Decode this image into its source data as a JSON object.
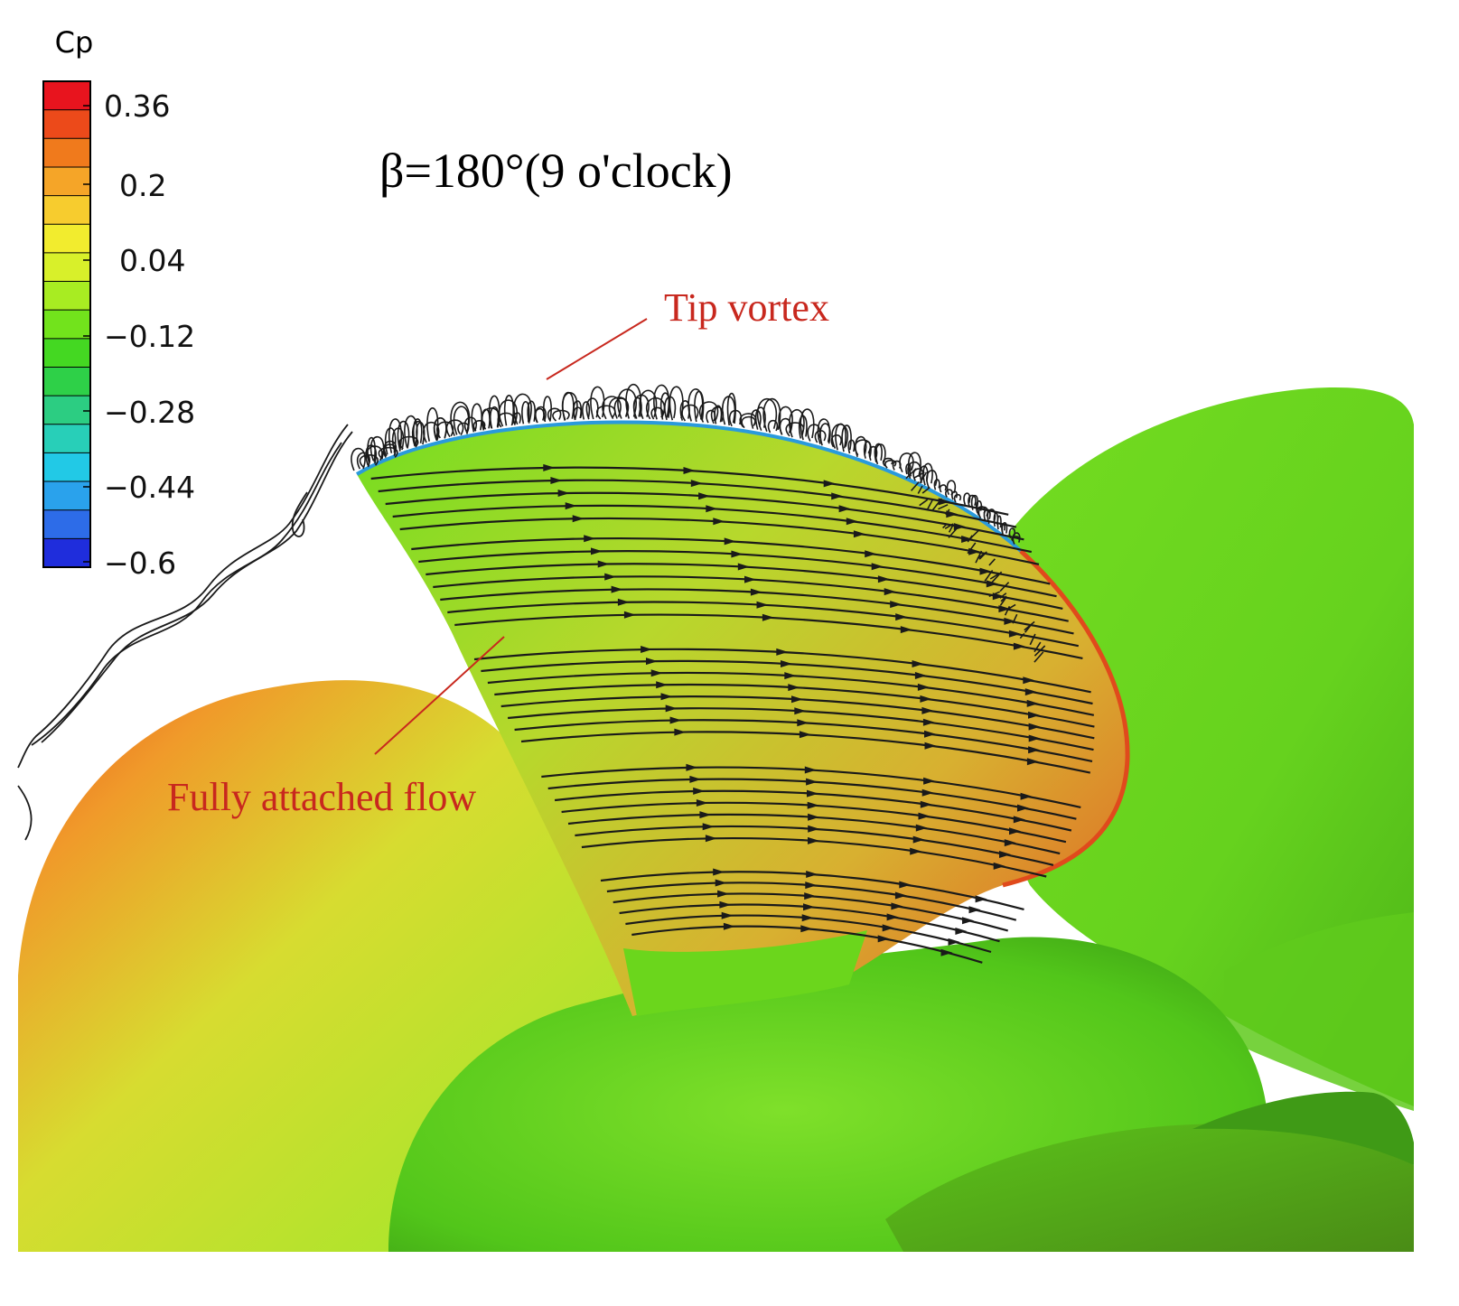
{
  "figure": {
    "title": "β=180°(9 o'clock)",
    "annotations": {
      "tip_vortex": "Tip vortex",
      "attached_flow": "Fully attached flow"
    },
    "annotation_color": "#c8281e"
  },
  "colorbar": {
    "label": "Cp",
    "ticks": [
      "0.36",
      "0.2",
      "0.04",
      "−0.12",
      "−0.28",
      "−0.44",
      "−0.6"
    ],
    "bands": [
      "#e8141e",
      "#ec4a1a",
      "#f07a1c",
      "#f5a528",
      "#f7cc2e",
      "#f2ec2e",
      "#d8f02a",
      "#a8ec22",
      "#72e31c",
      "#44d822",
      "#2ed048",
      "#2ccd82",
      "#28cfb8",
      "#22c9e6",
      "#2aa2ec",
      "#2d6ce8",
      "#1f2ddc"
    ]
  },
  "colors": {
    "hub_green": "#5ed01a",
    "blade_green": "#79dd20",
    "hot_edge": "#e14d1a",
    "streamline": "#1a1a1a"
  }
}
